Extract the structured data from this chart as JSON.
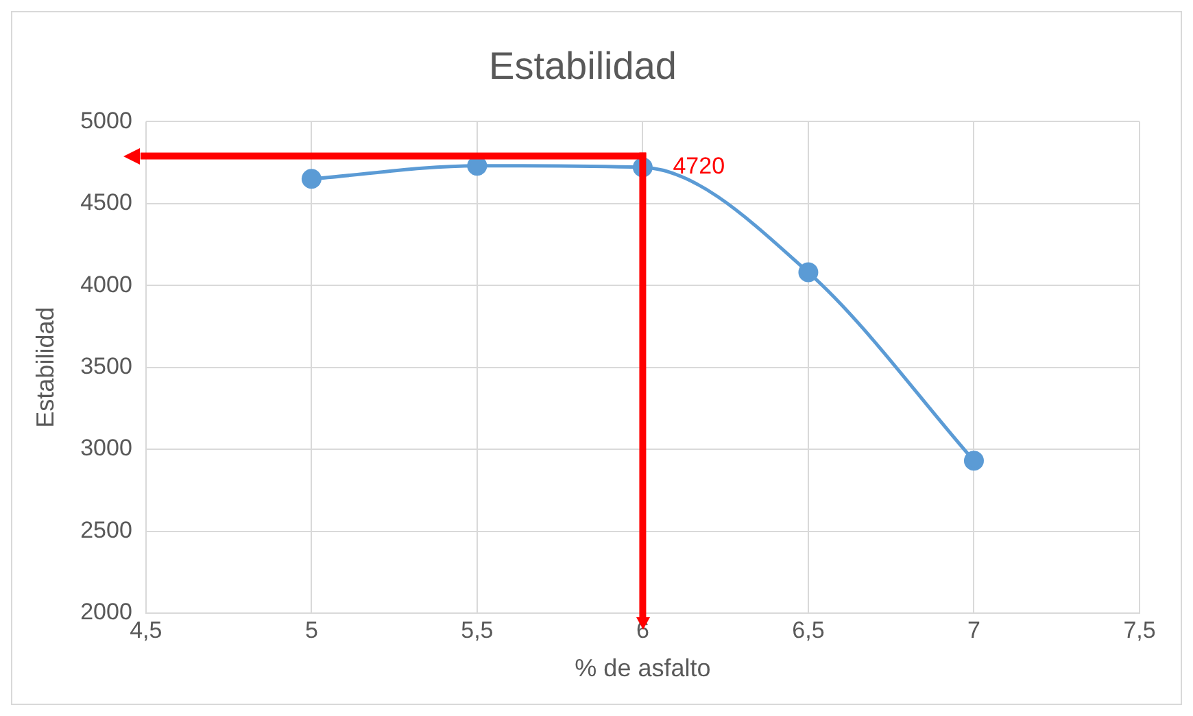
{
  "chart_data": {
    "type": "line",
    "title": "Estabilidad",
    "xlabel": "% de asfalto",
    "ylabel": "Estabilidad",
    "x": [
      5,
      5.5,
      6,
      6.5,
      7
    ],
    "series": [
      {
        "color": "#5b9bd5",
        "values": [
          4650,
          4730,
          4720,
          4080,
          2930
        ]
      }
    ],
    "xlim": [
      4.5,
      7.5
    ],
    "xticks": [
      {
        "value": 4.5,
        "label": "4,5"
      },
      5,
      {
        "value": 5.5,
        "label": "5,5"
      },
      6,
      {
        "value": 6.5,
        "label": "6,5"
      },
      7,
      {
        "value": 7.5,
        "label": "7,5"
      }
    ],
    "ylim": [
      2000,
      5000
    ],
    "yticks": [
      2000,
      2500,
      3000,
      3500,
      4000,
      4500,
      5000
    ],
    "grid": true,
    "legend": false,
    "marker": "circle",
    "line_style": "solid",
    "ref_lines": [
      {
        "axis": "y",
        "value": 4790,
        "color": "#ff0000"
      },
      {
        "axis": "x",
        "value": 6,
        "color": "#ff0000"
      }
    ],
    "annotations": [
      {
        "text": "4720",
        "x": 6,
        "y": 4720
      }
    ]
  }
}
